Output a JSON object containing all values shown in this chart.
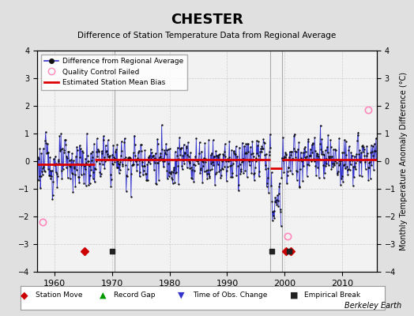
{
  "title": "CHESTER",
  "subtitle": "Difference of Station Temperature Data from Regional Average",
  "ylabel": "Monthly Temperature Anomaly Difference (°C)",
  "credit": "Berkeley Earth",
  "xlim": [
    1957,
    2016
  ],
  "ylim": [
    -4,
    4
  ],
  "yticks": [
    -4,
    -3,
    -2,
    -1,
    0,
    1,
    2,
    3,
    4
  ],
  "xticks": [
    1960,
    1970,
    1980,
    1990,
    2000,
    2010
  ],
  "background_color": "#e8e8e8",
  "plot_bg_color": "#f0f0f0",
  "grid_color": "#cccccc",
  "line_color": "#3333cc",
  "dot_color": "#111111",
  "bias_color": "#dd0000",
  "qc_color": "#ff88bb",
  "station_move_color": "#cc0000",
  "record_gap_color": "#009900",
  "tobs_color": "#3333cc",
  "emp_break_color": "#222222",
  "vertical_lines": [
    1970.5,
    1997.5,
    1999.5
  ],
  "bias_segments": [
    {
      "xstart": 1957,
      "xend": 1967,
      "bias": -0.12
    },
    {
      "xstart": 1967,
      "xend": 1997.5,
      "bias": 0.05
    },
    {
      "xstart": 1997.5,
      "xend": 1999.5,
      "bias": -0.25
    },
    {
      "xstart": 1999.5,
      "xend": 2016,
      "bias": 0.05
    }
  ],
  "station_moves": [
    1965.25,
    2000.25,
    2001.0
  ],
  "record_gaps": [],
  "tobs_changes": [],
  "empirical_breaks": [
    1970.0,
    1997.75,
    2000.75
  ],
  "qc_failed": [
    1958.0,
    2000.5,
    2014.5
  ],
  "qc_values": [
    -2.2,
    -2.7,
    1.85
  ]
}
